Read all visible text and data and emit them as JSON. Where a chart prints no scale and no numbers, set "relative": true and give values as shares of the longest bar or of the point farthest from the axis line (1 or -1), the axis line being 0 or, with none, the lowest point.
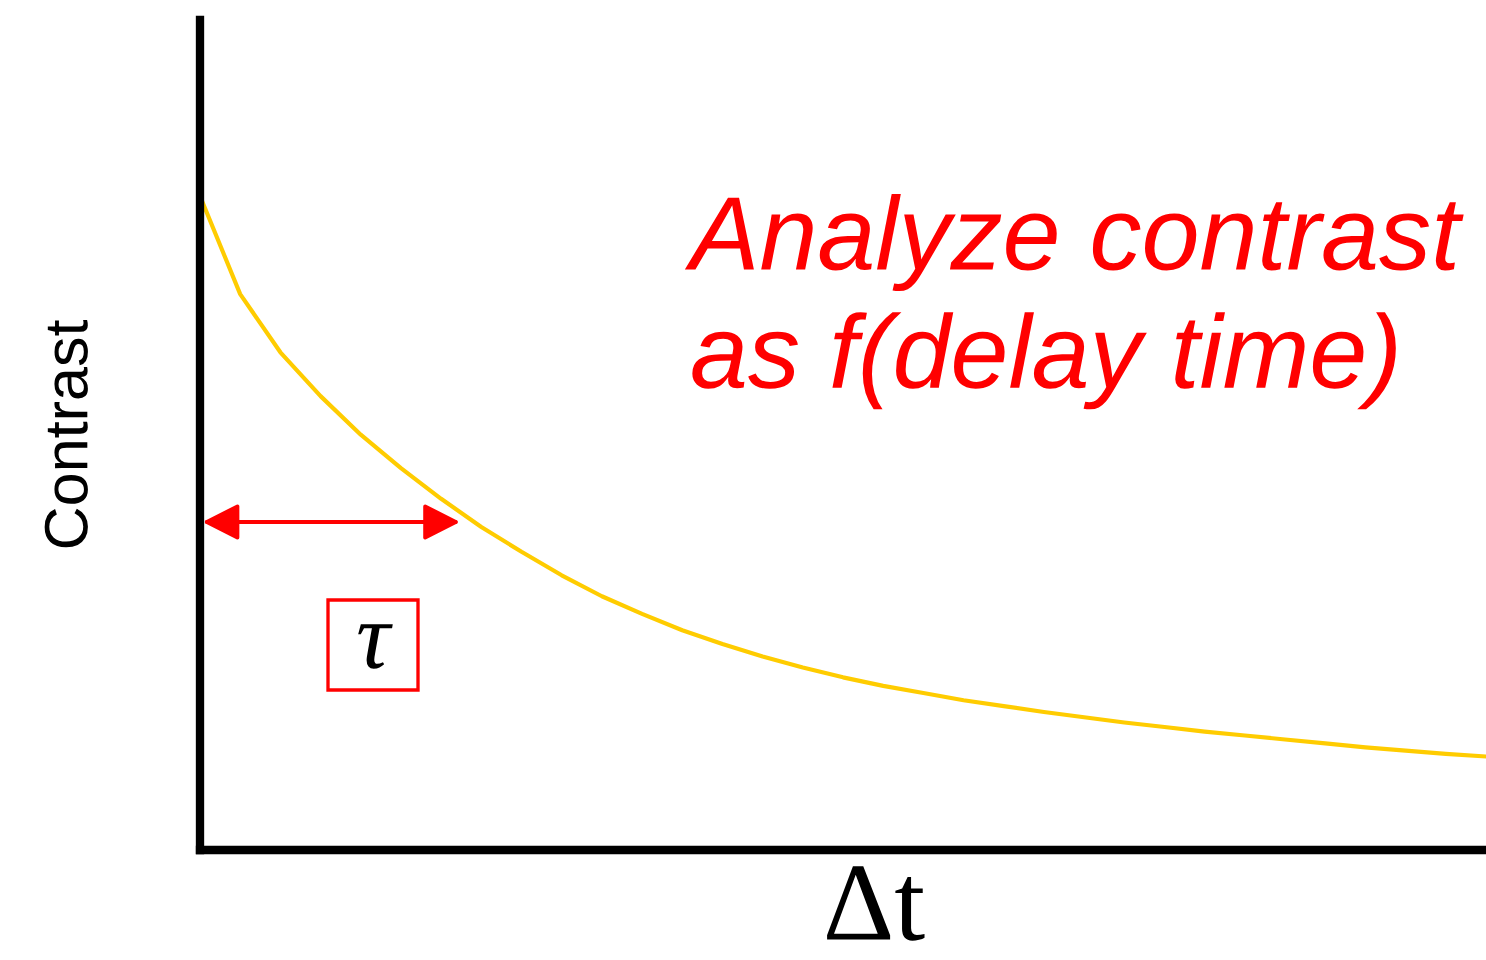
{
  "chart_data": {
    "type": "line",
    "relative": true,
    "xlabel": "Δt",
    "ylabel": "Contrast",
    "categories": [
      null,
      null,
      null,
      null,
      null,
      null,
      null,
      null,
      null,
      null,
      null,
      null,
      null,
      null,
      null,
      null,
      null,
      null,
      null,
      null,
      null,
      null,
      null,
      null,
      null,
      null,
      null,
      null,
      null,
      null,
      null,
      null,
      null
    ],
    "series": [
      {
        "color": "#ffcc00",
        "values": [
          1,
          0.85,
          0.761,
          0.694,
          0.635,
          0.584,
          0.537,
          0.494,
          0.456,
          0.42,
          0.388,
          0.361,
          0.336,
          0.315,
          0.296,
          0.279,
          0.264,
          0.251,
          0.24,
          0.229,
          0.22,
          0.211,
          0.203,
          0.195,
          0.188,
          0.181,
          0.175,
          0.169,
          0.163,
          0.157,
          0.152,
          0.147,
          0.143
        ]
      }
    ],
    "annotations": [
      "Analyze contrast\nas f(delay time)",
      "τ"
    ],
    "line_style": "solid",
    "grid": false
  }
}
